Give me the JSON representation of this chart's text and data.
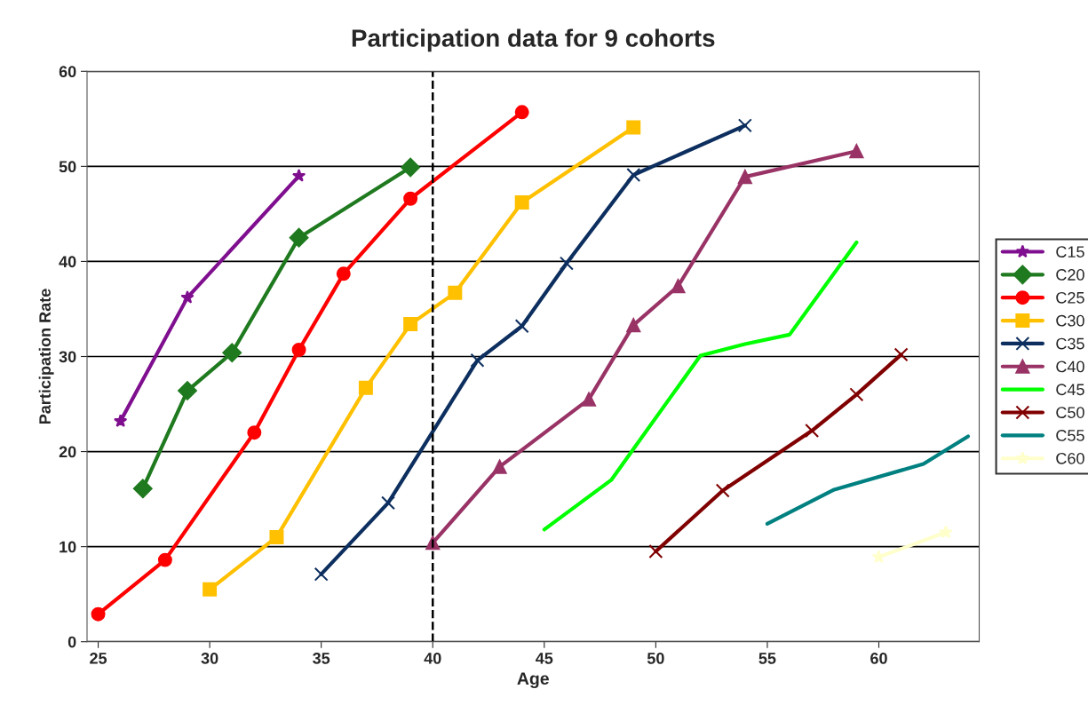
{
  "chart_data": {
    "type": "line",
    "title": "Participation data for 9 cohorts",
    "xlabel": "Age",
    "ylabel": "Participation Rate",
    "xlim": [
      24.5,
      64.5
    ],
    "xticks": [
      25,
      30,
      35,
      40,
      45,
      50,
      55,
      60
    ],
    "ylim": [
      0,
      60
    ],
    "yticks": [
      0,
      10,
      20,
      30,
      40,
      50,
      60
    ],
    "grid": "y",
    "legend": "right",
    "line_style": "solid",
    "ref_lines": [
      {
        "axis": "x",
        "value": 40,
        "color": "#000000",
        "line_style": "dashed"
      }
    ],
    "series": [
      {
        "name": "C15",
        "color": "#7f0f8f",
        "marker": "star",
        "x": [
          26,
          29,
          34
        ],
        "values": [
          23.2,
          36.2,
          49.0
        ]
      },
      {
        "name": "C20",
        "color": "#1f7a1f",
        "marker": "diamond",
        "x": [
          27,
          29,
          31,
          34,
          39
        ],
        "values": [
          16.1,
          26.4,
          30.4,
          42.5,
          49.9
        ]
      },
      {
        "name": "C25",
        "color": "#ff0000",
        "marker": "circle",
        "x": [
          25,
          28,
          32,
          34,
          36,
          39,
          44
        ],
        "values": [
          2.9,
          8.6,
          22.0,
          30.7,
          38.7,
          46.6,
          55.7
        ]
      },
      {
        "name": "C30",
        "color": "#ffc000",
        "marker": "square",
        "x": [
          30,
          33,
          37,
          39,
          41,
          44,
          49
        ],
        "values": [
          5.5,
          11.0,
          26.7,
          33.4,
          36.7,
          46.2,
          54.1
        ]
      },
      {
        "name": "C35",
        "color": "#0d2f5f",
        "marker": "cross",
        "x": [
          35,
          38,
          42,
          44,
          46,
          49,
          54
        ],
        "values": [
          7.1,
          14.6,
          29.6,
          33.2,
          39.8,
          49.1,
          54.3
        ]
      },
      {
        "name": "C40",
        "color": "#993366",
        "marker": "triangle",
        "x": [
          40,
          43,
          47,
          49,
          51,
          54,
          59
        ],
        "values": [
          10.4,
          18.4,
          25.5,
          33.3,
          37.4,
          48.9,
          51.6
        ]
      },
      {
        "name": "C45",
        "color": "#00ff00",
        "marker": "none",
        "x": [
          45,
          48,
          52,
          54,
          56,
          59
        ],
        "values": [
          11.8,
          17.0,
          30.1,
          31.3,
          32.3,
          42.0
        ]
      },
      {
        "name": "C50",
        "color": "#800000",
        "marker": "cross",
        "x": [
          50,
          53,
          57,
          59,
          61
        ],
        "values": [
          9.5,
          15.9,
          22.2,
          26.0,
          30.2
        ]
      },
      {
        "name": "C55",
        "color": "#008080",
        "marker": "none",
        "x": [
          55,
          58,
          62,
          64
        ],
        "values": [
          12.4,
          16.0,
          18.7,
          21.6
        ]
      },
      {
        "name": "C60",
        "color": "#ffffcc",
        "marker": "star",
        "x": [
          60,
          63
        ],
        "values": [
          8.9,
          11.5
        ]
      }
    ]
  }
}
